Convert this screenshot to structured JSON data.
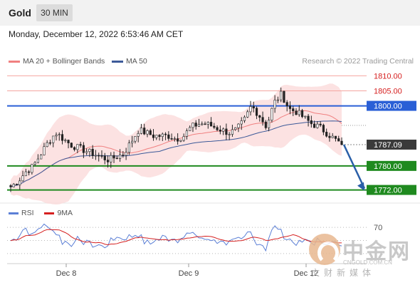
{
  "header": {
    "symbol": "Gold",
    "timeframe": "30 MIN",
    "datetime": "Monday, December 12, 2022 6:53:46 AM CET"
  },
  "legend": {
    "bollinger_label": "MA 20 + Bollinger Bands",
    "bollinger_color": "#f08080",
    "ma50_label": "MA 50",
    "ma50_color": "#3d5a99",
    "copyright": "Research © 2022 Trading Central"
  },
  "rsi_legend": {
    "rsi_label": "RSI",
    "rsi_color": "#5b7fd6",
    "ma_label": "9MA",
    "ma_color": "#d62020"
  },
  "watermark": {
    "cn": "中金网",
    "url": "CNGOLD.COM.CN",
    "sub": "文财新媒体"
  },
  "chart_data": {
    "type": "candlestick",
    "x_ticks": [
      "Dec 8",
      "Dec 9",
      "Dec 12"
    ],
    "ylim": [
      1770,
      1812
    ],
    "price_levels": [
      {
        "label": "1810.00",
        "value": 1810.0,
        "color": "#f4a6a0",
        "style": "thin"
      },
      {
        "label": "1805.00",
        "value": 1805.0,
        "color": "#f4a6a0",
        "style": "thin"
      },
      {
        "label": "1800.00",
        "value": 1800.0,
        "color": "#2a5fd6",
        "style": "thick"
      },
      {
        "label": "1787.09",
        "value": 1787.09,
        "color": "#333333",
        "style": "current"
      },
      {
        "label": "1780.00",
        "value": 1780.0,
        "color": "#1f8a1f",
        "style": "thick"
      },
      {
        "label": "1772.00",
        "value": 1772.0,
        "color": "#1f8a1f",
        "style": "thick"
      }
    ],
    "label_colors": {
      "resistance": "#d62020",
      "support": "#1f8a1f",
      "pivot": "#2a5fd6",
      "current": "#333333"
    },
    "close_path": [
      1773,
      1775,
      1778,
      1780,
      1784,
      1788,
      1791,
      1789,
      1787,
      1786,
      1785,
      1784,
      1783,
      1782,
      1783,
      1784,
      1788,
      1792,
      1791,
      1790,
      1790,
      1790,
      1789,
      1790,
      1793,
      1794,
      1794,
      1793,
      1792,
      1791,
      1792,
      1795,
      1800,
      1797,
      1793,
      1801,
      1804,
      1799,
      1798,
      1796,
      1794,
      1793,
      1791,
      1789,
      1787.09
    ],
    "forecast_arrow": {
      "from": 1787.09,
      "to": 1772.0,
      "color": "#2a5fa8"
    },
    "rsi": {
      "level_label": "70",
      "level": 70,
      "ylim": [
        20,
        80
      ]
    }
  }
}
